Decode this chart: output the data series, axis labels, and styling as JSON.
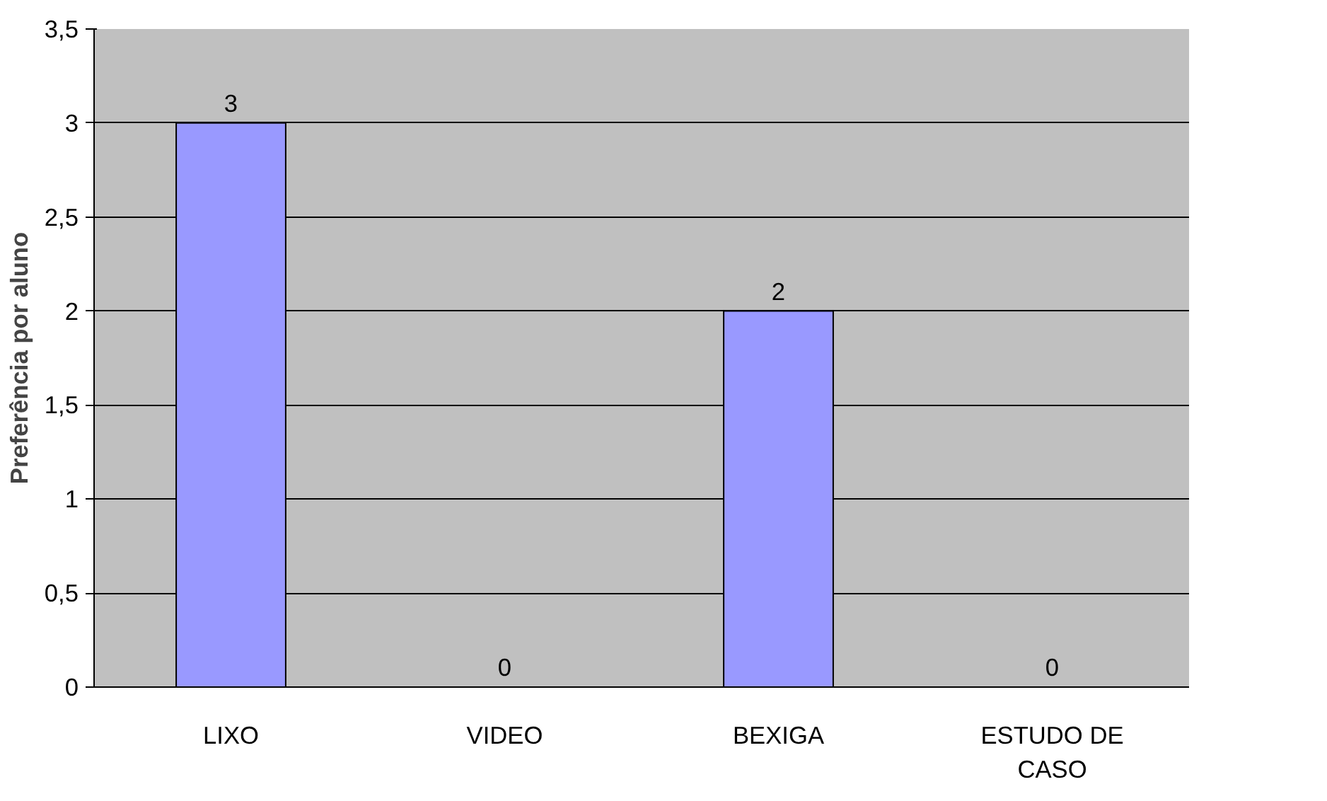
{
  "chart_data": {
    "type": "bar",
    "ylabel": "Preferência por aluno",
    "categories": [
      "LIXO",
      "VIDEO",
      "BEXIGA",
      "ESTUDO DE CASO"
    ],
    "values": [
      3,
      0,
      2,
      0
    ],
    "color": "#9999ff",
    "ylim": [
      0,
      3.5
    ],
    "yticks": [
      0,
      {
        "value": 0.5,
        "label": "0,5"
      },
      1,
      {
        "value": 1.5,
        "label": "1,5"
      },
      2,
      {
        "value": 2.5,
        "label": "2,5"
      },
      3,
      {
        "value": 3.5,
        "label": "3,5"
      }
    ],
    "grid": "y",
    "data_labels": true
  }
}
